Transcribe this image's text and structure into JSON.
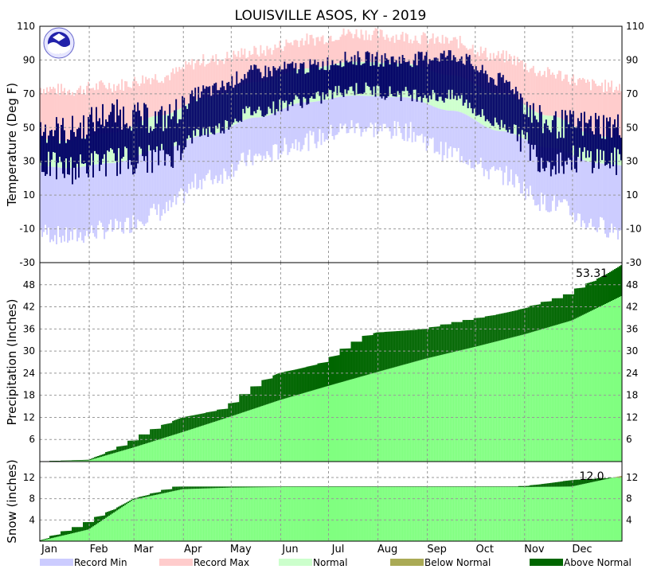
{
  "title": "LOUISVILLE   ASOS, KY - 2019",
  "months": [
    "Jan",
    "Feb",
    "Mar",
    "Apr",
    "May",
    "Jun",
    "Jul",
    "Aug",
    "Sep",
    "Oct",
    "Nov",
    "Dec"
  ],
  "colors": {
    "record_min": "#ccccff",
    "record_max": "#ffcccc",
    "normal": "#ccffcc",
    "observed_temp": "#000066",
    "normal_accum": "#80ff80",
    "below_normal": "#aaaa55",
    "above_normal": "#006600",
    "grid": "#999999"
  },
  "legend": [
    {
      "label": "Record Min",
      "color_key": "record_min"
    },
    {
      "label": "Record Max",
      "color_key": "record_max"
    },
    {
      "label": "Normal",
      "color_key": "normal"
    },
    {
      "label": "Below Normal",
      "color_key": "below_normal"
    },
    {
      "label": "Above Normal",
      "color_key": "above_normal"
    }
  ],
  "chart_data": [
    {
      "type": "area",
      "panel": "temperature",
      "ylabel": "Temperature (Deg F)",
      "ylim": [
        -30,
        110
      ],
      "yticks": [
        -10,
        10,
        30,
        50,
        70,
        90,
        110
      ],
      "x": "day of year 2019",
      "grid": true,
      "series": [
        {
          "name": "Record Min"
        },
        {
          "name": "Record Max"
        },
        {
          "name": "Normal"
        }
      ],
      "monthly_record_max_approx": [
        72,
        75,
        80,
        90,
        95,
        102,
        106,
        104,
        101,
        92,
        82,
        75
      ],
      "monthly_record_min_approx": [
        -15,
        -10,
        0,
        20,
        32,
        42,
        50,
        48,
        35,
        22,
        5,
        -8
      ],
      "monthly_normal_high_approx": [
        42,
        47,
        57,
        68,
        77,
        85,
        89,
        88,
        81,
        70,
        57,
        45
      ],
      "monthly_normal_low_approx": [
        26,
        29,
        37,
        46,
        56,
        65,
        69,
        68,
        60,
        48,
        38,
        29
      ],
      "monthly_observed_high_approx": [
        48,
        58,
        55,
        72,
        83,
        86,
        91,
        90,
        93,
        78,
        52,
        52
      ],
      "monthly_observed_low_approx": [
        25,
        30,
        32,
        48,
        60,
        66,
        73,
        70,
        68,
        52,
        30,
        32
      ]
    },
    {
      "type": "area",
      "panel": "precipitation",
      "ylabel": "Precipitation (Inches)",
      "ylim": [
        0,
        54
      ],
      "yticks": [
        6,
        12,
        18,
        24,
        30,
        36,
        42,
        48
      ],
      "grid": true,
      "series": [
        {
          "name": "Normal"
        },
        {
          "name": "Above Normal"
        },
        {
          "name": "Below Normal"
        }
      ],
      "cumulative_observed_month_end": [
        0.5,
        5.0,
        12.0,
        14.5,
        24.0,
        27.0,
        35.0,
        36.0,
        38.5,
        41.5,
        45.0,
        53.31
      ],
      "cumulative_normal_month_end": [
        0.3,
        3.8,
        8.0,
        12.2,
        16.7,
        20.5,
        24.3,
        28.0,
        31.1,
        34.5,
        38.3,
        44.9
      ],
      "annotation": "53.31"
    },
    {
      "type": "area",
      "panel": "snow",
      "ylabel": "Snow (inches)",
      "ylim": [
        0,
        15
      ],
      "yticks": [
        4,
        8,
        12
      ],
      "grid": true,
      "series": [
        {
          "name": "Normal"
        },
        {
          "name": "Above Normal"
        },
        {
          "name": "Below Normal"
        }
      ],
      "cumulative_observed_month_end": [
        3.0,
        8.0,
        10.3,
        10.3,
        10.3,
        10.3,
        10.3,
        10.3,
        10.3,
        10.3,
        11.5,
        12.0
      ],
      "cumulative_normal_month_end": [
        2.2,
        7.8,
        9.8,
        10.1,
        10.2,
        10.2,
        10.2,
        10.2,
        10.2,
        10.2,
        10.3,
        12.3
      ],
      "annotation": "12.0"
    }
  ]
}
